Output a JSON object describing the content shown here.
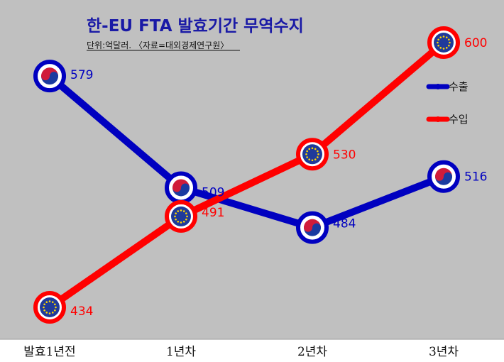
{
  "chart_data": {
    "type": "line",
    "title": "한-EU FTA 발효기간 무역수지",
    "subtitle": "단위:억달러. 〈자료=대외경제연구원〉",
    "categories": [
      "발효1년전",
      "1년차",
      "2년차",
      "3년차"
    ],
    "ylim": [
      400,
      620
    ],
    "grid": false,
    "legend_position": "right",
    "series": [
      {
        "name": "수출",
        "values": [
          579,
          509,
          484,
          516
        ],
        "color": "#0000c0",
        "marker": "korea-flag-icon"
      },
      {
        "name": "수입",
        "values": [
          434,
          491,
          530,
          600
        ],
        "color": "#ff0000",
        "marker": "eu-flag-icon"
      }
    ],
    "colors": {
      "plot_background": "#c0c0c0",
      "page_background": "#ffffff",
      "title": "#1a1aa6"
    }
  }
}
